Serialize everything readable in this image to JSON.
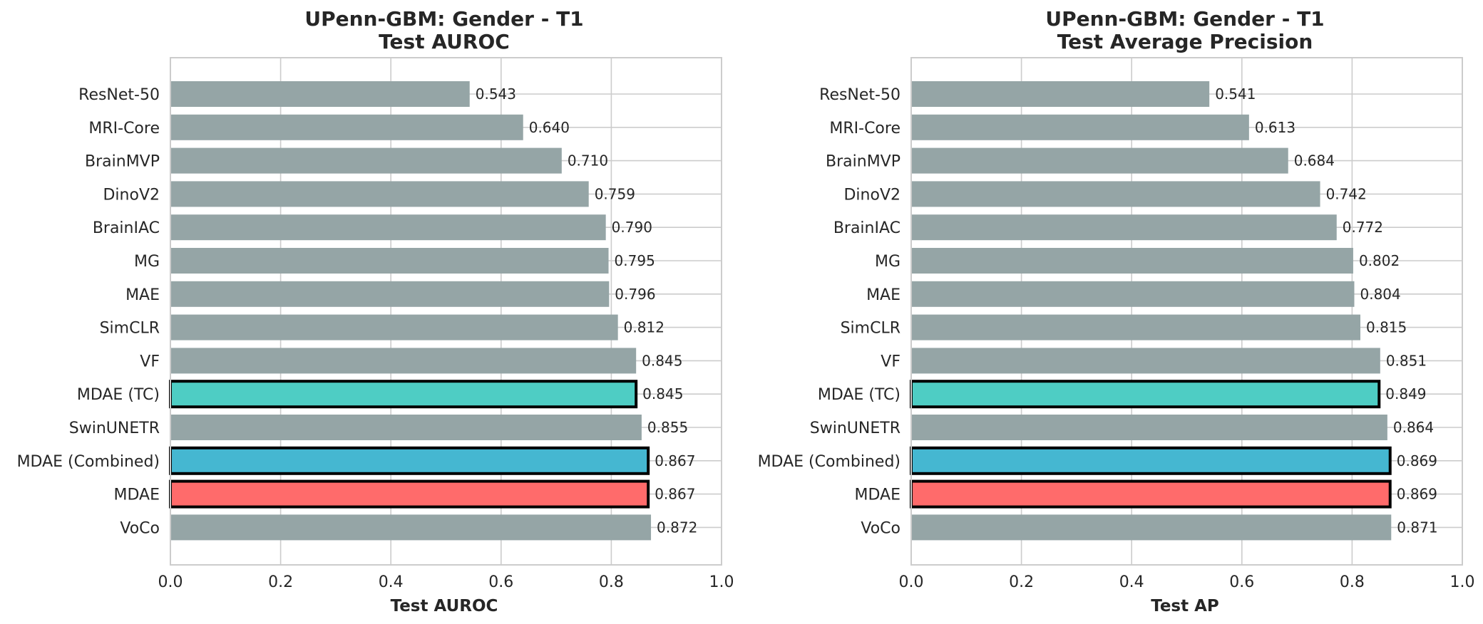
{
  "chart_data": [
    {
      "type": "bar",
      "orientation": "horizontal",
      "title": "UPenn-GBM: Gender - T1",
      "subtitle": "Test AUROC",
      "xlabel": "Test AUROC",
      "xlim": [
        0.0,
        1.0
      ],
      "xticks": [
        "0.0",
        "0.2",
        "0.4",
        "0.6",
        "0.8",
        "1.0"
      ],
      "grid": true,
      "categories": [
        "ResNet-50",
        "MRI-Core",
        "BrainMVP",
        "DinoV2",
        "BrainIAC",
        "MG",
        "MAE",
        "SimCLR",
        "VF",
        "MDAE (TC)",
        "SwinUNETR",
        "MDAE (Combined)",
        "MDAE",
        "VoCo"
      ],
      "values": [
        0.543,
        0.64,
        0.71,
        0.759,
        0.79,
        0.795,
        0.796,
        0.812,
        0.845,
        0.845,
        0.855,
        0.867,
        0.867,
        0.872
      ],
      "value_labels": [
        "0.543",
        "0.640",
        "0.710",
        "0.759",
        "0.790",
        "0.795",
        "0.796",
        "0.812",
        "0.845",
        "0.845",
        "0.855",
        "0.867",
        "0.867",
        "0.872"
      ],
      "bar_colors": [
        "#95a5a6",
        "#95a5a6",
        "#95a5a6",
        "#95a5a6",
        "#95a5a6",
        "#95a5a6",
        "#95a5a6",
        "#95a5a6",
        "#95a5a6",
        "#4ecdc4",
        "#95a5a6",
        "#45b7d1",
        "#ff6b6b",
        "#95a5a6"
      ],
      "highlighted": [
        false,
        false,
        false,
        false,
        false,
        false,
        false,
        false,
        false,
        true,
        false,
        true,
        true,
        false
      ]
    },
    {
      "type": "bar",
      "orientation": "horizontal",
      "title": "UPenn-GBM: Gender - T1",
      "subtitle": "Test Average Precision",
      "xlabel": "Test AP",
      "xlim": [
        0.0,
        1.0
      ],
      "xticks": [
        "0.0",
        "0.2",
        "0.4",
        "0.6",
        "0.8",
        "1.0"
      ],
      "grid": true,
      "categories": [
        "ResNet-50",
        "MRI-Core",
        "BrainMVP",
        "DinoV2",
        "BrainIAC",
        "MG",
        "MAE",
        "SimCLR",
        "VF",
        "MDAE (TC)",
        "SwinUNETR",
        "MDAE (Combined)",
        "MDAE",
        "VoCo"
      ],
      "values": [
        0.541,
        0.613,
        0.684,
        0.742,
        0.772,
        0.802,
        0.804,
        0.815,
        0.851,
        0.849,
        0.864,
        0.869,
        0.869,
        0.871
      ],
      "value_labels": [
        "0.541",
        "0.613",
        "0.684",
        "0.742",
        "0.772",
        "0.802",
        "0.804",
        "0.815",
        "0.851",
        "0.849",
        "0.864",
        "0.869",
        "0.869",
        "0.871"
      ],
      "bar_colors": [
        "#95a5a6",
        "#95a5a6",
        "#95a5a6",
        "#95a5a6",
        "#95a5a6",
        "#95a5a6",
        "#95a5a6",
        "#95a5a6",
        "#95a5a6",
        "#4ecdc4",
        "#95a5a6",
        "#45b7d1",
        "#ff6b6b",
        "#95a5a6"
      ],
      "highlighted": [
        false,
        false,
        false,
        false,
        false,
        false,
        false,
        false,
        false,
        true,
        false,
        true,
        true,
        false
      ]
    }
  ]
}
